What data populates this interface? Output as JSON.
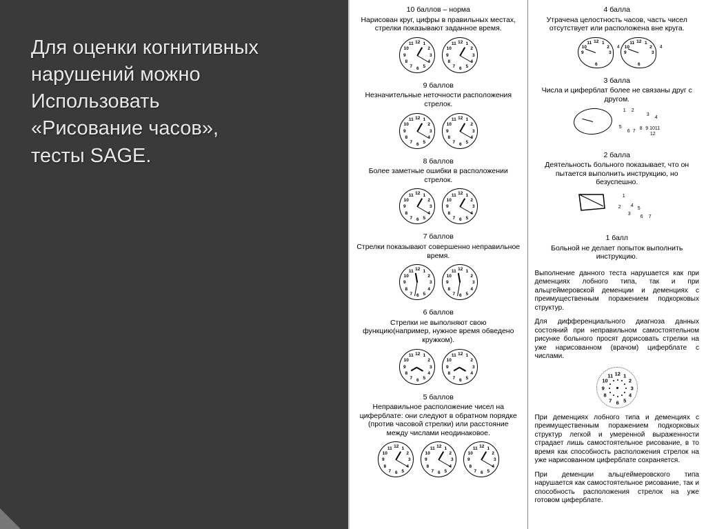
{
  "heading": {
    "line1": "Для оценки когнитивных",
    "line2": "нарушений можно",
    "line3": "Использовать",
    "line4": "«Рисование часов»,",
    "line5": " тесты SAGE."
  },
  "left_col": {
    "s10": {
      "title": "10 баллов – норма",
      "desc": "Нарисован круг, цифры в правильных местах, стрелки показывают заданное время."
    },
    "s9": {
      "title": "9 баллов",
      "desc": "Незначительные неточности расположения стрелок."
    },
    "s8": {
      "title": "8 баллов",
      "desc": "Более заметные ошибки в расположении стрелок."
    },
    "s7": {
      "title": "7 баллов",
      "desc": "Стрелки показывают совершенно неправильное время."
    },
    "s6": {
      "title": "6 баллов",
      "desc": "Стрелки не выполняют свою функцию(например, нужное время обведено кружком)."
    },
    "s5": {
      "title": "5 баллов",
      "desc": "Неправильное расположение чисел на циферблате: они следуют в обратном порядке (против часовой стрелки) или расстояние между числами неодинаковое."
    }
  },
  "right_col": {
    "s4": {
      "title": "4 балла",
      "desc": "Утрачена целостность часов, часть чисел отсутствует или расположена вне круга."
    },
    "s3": {
      "title": "3 балла",
      "desc": "Числа и циферблат более не связаны друг с другом."
    },
    "s2": {
      "title": "2 балла",
      "desc": "Деятельность больного показывает, что он пытается выполнить инструкцию, но безуспешно."
    },
    "s1": {
      "title": "1 балл",
      "desc": "Больной не делает попыток выполнить инструкцию."
    },
    "note1": "Выполнение данного теста нарушается как при деменциях лобного типа, так и при альцгеймеровской деменции и деменциях с преимущественным поражением подкорковых структур.",
    "note2": "Для дифференциального диагноза данных состояний при неправильном самостоятельном рисунке больного просят дорисовать стрелки на уже нарисованном (врачом) циферблате с числами.",
    "note3": "При деменциях лобного типа и деменциях с преимущественным поражением подкорковых структур легкой и умеренной выраженности страдает лишь самостоятельное рисование, в то время как способность расположения стрелок на уже нарисованном циферблате сохраняется.",
    "note4": "При деменции альцгеймеровского типа нарушается как самостоятельное рисование, так и способность расположения стрелок на уже готовом циферблате."
  },
  "clock": {
    "numbers": [
      "12",
      "1",
      "2",
      "3",
      "4",
      "5",
      "6",
      "7",
      "8",
      "9",
      "10",
      "11"
    ]
  },
  "colors": {
    "bg_dark": "#3a3a3a",
    "text_light": "#e8e8e8",
    "bg_white": "#ffffff"
  }
}
